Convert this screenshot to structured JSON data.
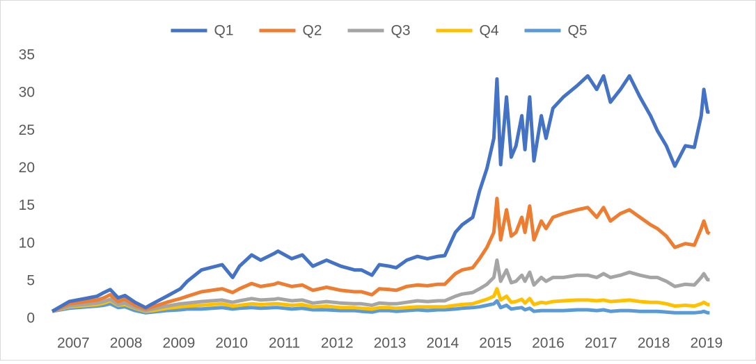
{
  "chart_data": {
    "type": "line",
    "x": [
      2006.6,
      2006.92,
      2007.45,
      2007.58,
      2007.7,
      2007.85,
      2007.98,
      2008.17,
      2008.37,
      2008.5,
      2008.77,
      2009.03,
      2009.16,
      2009.43,
      2009.82,
      2010.02,
      2010.15,
      2010.38,
      2010.55,
      2010.81,
      2010.88,
      2011.14,
      2011.34,
      2011.54,
      2011.8,
      2012.07,
      2012.33,
      2012.46,
      2012.66,
      2012.8,
      2012.99,
      2013.12,
      2013.32,
      2013.52,
      2013.71,
      2013.91,
      2014.04,
      2014.24,
      2014.37,
      2014.57,
      2014.7,
      2014.84,
      2014.97,
      2015.03,
      2015.1,
      2015.21,
      2015.3,
      2015.39,
      2015.5,
      2015.56,
      2015.65,
      2015.73,
      2015.87,
      2015.96,
      2016.09,
      2016.29,
      2016.55,
      2016.75,
      2016.92,
      2017.05,
      2017.18,
      2017.37,
      2017.54,
      2017.74,
      2017.94,
      2018.07,
      2018.24,
      2018.4,
      2018.6,
      2018.77,
      2018.9,
      2018.95,
      2019.02,
      2019.06
    ],
    "series": [
      {
        "name": "Q1",
        "color": "#4472c4",
        "values": [
          1,
          2.3,
          3.0,
          3.5,
          3.9,
          2.8,
          3.1,
          2.2,
          1.5,
          2.0,
          3.0,
          4.0,
          5.0,
          6.5,
          7.2,
          5.5,
          7.0,
          8.5,
          7.8,
          8.7,
          9.0,
          8.0,
          8.5,
          7.0,
          7.8,
          7.0,
          6.5,
          6.5,
          5.8,
          7.2,
          7.0,
          6.8,
          7.8,
          8.3,
          8.0,
          8.3,
          8.4,
          11.5,
          12.5,
          13.5,
          17,
          20,
          24,
          31.9,
          20.5,
          29.5,
          21.5,
          23,
          27,
          22.5,
          29.5,
          21,
          27,
          24,
          28,
          29.5,
          31,
          32.3,
          30.5,
          32.3,
          28.8,
          30.5,
          32.3,
          29.5,
          27,
          25,
          23,
          20.3,
          23,
          22.8,
          27,
          30.5,
          27.5,
          27.5
        ]
      },
      {
        "name": "Q2",
        "color": "#ed7d31",
        "values": [
          1,
          2.0,
          2.5,
          2.8,
          3.2,
          2.3,
          2.6,
          1.8,
          1.3,
          1.6,
          2.2,
          2.7,
          3.0,
          3.6,
          4.0,
          3.5,
          4.0,
          4.7,
          4.3,
          4.6,
          4.8,
          4.3,
          4.5,
          3.8,
          4.2,
          3.8,
          3.6,
          3.6,
          3.2,
          4.0,
          3.9,
          3.8,
          4.3,
          4.5,
          4.4,
          4.6,
          4.6,
          6.0,
          6.5,
          6.8,
          8.0,
          9.5,
          11.5,
          16.0,
          10.5,
          14.5,
          11,
          11.5,
          13.5,
          11.5,
          15,
          10.5,
          13,
          12,
          13.5,
          14,
          14.5,
          14.8,
          13.5,
          14.8,
          13,
          14,
          14.5,
          13.5,
          12.5,
          12,
          11,
          9.5,
          10,
          9.8,
          12,
          13,
          11.5,
          11.3
        ]
      },
      {
        "name": "Q3",
        "color": "#a5a5a5",
        "values": [
          1,
          1.7,
          2.1,
          2.3,
          2.6,
          1.9,
          2.1,
          1.5,
          1.1,
          1.3,
          1.7,
          2.0,
          2.1,
          2.3,
          2.5,
          2.2,
          2.4,
          2.7,
          2.5,
          2.6,
          2.7,
          2.4,
          2.5,
          2.1,
          2.3,
          2.1,
          2.0,
          2.0,
          1.8,
          2.1,
          2.0,
          2.0,
          2.2,
          2.4,
          2.3,
          2.4,
          2.4,
          3.0,
          3.3,
          3.5,
          4.0,
          4.6,
          5.5,
          7.8,
          5.0,
          6.5,
          4.8,
          5.0,
          5.8,
          5.0,
          6.2,
          4.5,
          5.5,
          5.0,
          5.5,
          5.5,
          5.8,
          5.8,
          5.5,
          6.0,
          5.5,
          5.8,
          6.2,
          5.8,
          5.5,
          5.5,
          5.0,
          4.3,
          4.6,
          4.5,
          5.5,
          6.0,
          5.2,
          5.2
        ]
      },
      {
        "name": "Q4",
        "color": "#ffc000",
        "values": [
          1,
          1.6,
          1.9,
          2.1,
          2.4,
          1.8,
          1.9,
          1.4,
          1.0,
          1.1,
          1.4,
          1.6,
          1.7,
          1.8,
          2.0,
          1.7,
          1.8,
          2.0,
          1.9,
          2.0,
          2.0,
          1.8,
          1.9,
          1.6,
          1.7,
          1.5,
          1.5,
          1.4,
          1.3,
          1.5,
          1.5,
          1.4,
          1.5,
          1.6,
          1.6,
          1.6,
          1.6,
          1.8,
          1.9,
          2.0,
          2.3,
          2.6,
          3.0,
          4.0,
          2.5,
          3.0,
          2.2,
          2.3,
          2.6,
          2.1,
          2.7,
          1.9,
          2.2,
          2.1,
          2.3,
          2.4,
          2.5,
          2.5,
          2.4,
          2.5,
          2.3,
          2.4,
          2.5,
          2.3,
          2.2,
          2.2,
          2.0,
          1.7,
          1.8,
          1.7,
          2.0,
          2.2,
          1.9,
          1.9
        ]
      },
      {
        "name": "Q5",
        "color": "#5b9bd5",
        "values": [
          1,
          1.4,
          1.7,
          1.8,
          2.0,
          1.5,
          1.6,
          1.1,
          0.8,
          0.9,
          1.1,
          1.2,
          1.3,
          1.3,
          1.5,
          1.3,
          1.4,
          1.5,
          1.4,
          1.5,
          1.5,
          1.3,
          1.4,
          1.2,
          1.2,
          1.1,
          1.1,
          1.0,
          0.9,
          1.1,
          1.1,
          1.0,
          1.1,
          1.2,
          1.1,
          1.2,
          1.2,
          1.3,
          1.4,
          1.5,
          1.6,
          1.8,
          2.0,
          2.4,
          1.5,
          1.8,
          1.3,
          1.4,
          1.5,
          1.2,
          1.4,
          1.0,
          1.1,
          1.1,
          1.1,
          1.1,
          1.2,
          1.2,
          1.1,
          1.2,
          1.0,
          1.1,
          1.1,
          1.0,
          1.0,
          1.0,
          0.9,
          0.8,
          0.8,
          0.8,
          0.9,
          1.0,
          0.8,
          0.8
        ]
      }
    ],
    "xlim": [
      2006.6,
      2019.2
    ],
    "xticks": [
      2007,
      2008,
      2009,
      2010,
      2011,
      2012,
      2013,
      2014,
      2015,
      2016,
      2017,
      2018,
      2019
    ],
    "ylim": [
      0,
      35
    ],
    "yticks": [
      0,
      5,
      10,
      15,
      20,
      25,
      30,
      35
    ],
    "grid": false,
    "legend": "top"
  }
}
